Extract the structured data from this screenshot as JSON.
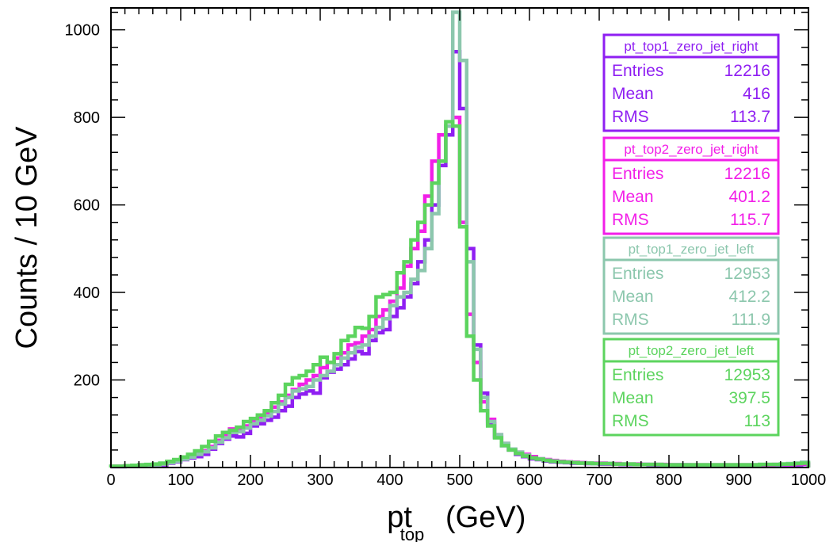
{
  "chart_data": {
    "type": "histogram",
    "xlabel": "pt",
    "xlabel_sub": "top",
    "xlabel_unit": "(GeV)",
    "ylabel": "Counts / 10 GeV",
    "xlim": [
      0,
      1000
    ],
    "ylim": [
      0,
      1050
    ],
    "bin_width": 10,
    "x_ticks": [
      "0",
      "100",
      "200",
      "300",
      "400",
      "500",
      "600",
      "700",
      "800",
      "900",
      "1000"
    ],
    "y_ticks": [
      "200",
      "400",
      "600",
      "800",
      "1000"
    ],
    "grid": false,
    "legend_position": "right",
    "series": [
      {
        "name": "pt_top1_zero_jet_right",
        "color": "#8f1ff2",
        "stats": [
          {
            "label": "Entries",
            "value": "12216"
          },
          {
            "label": "Mean",
            "value": "416"
          },
          {
            "label": "RMS",
            "value": "113.7"
          }
        ],
        "values": [
          2,
          2,
          3,
          4,
          3,
          5,
          5,
          6,
          10,
          13,
          18,
          22,
          25,
          30,
          42,
          55,
          65,
          72,
          70,
          78,
          95,
          100,
          108,
          115,
          130,
          140,
          160,
          168,
          175,
          170,
          205,
          218,
          225,
          235,
          248,
          265,
          260,
          290,
          308,
          315,
          345,
          365,
          390,
          420,
          470,
          520,
          600,
          690,
          760,
          950,
          820,
          500,
          280,
          170,
          100,
          70,
          50,
          40,
          30,
          25,
          20,
          18,
          15,
          13,
          12,
          11,
          10,
          10,
          9,
          9,
          8,
          8,
          8,
          7,
          7,
          7,
          7,
          6,
          6,
          6,
          6,
          6,
          6,
          5,
          5,
          5,
          5,
          5,
          5,
          5,
          5,
          5,
          5,
          5,
          5,
          6,
          6,
          6,
          6,
          7
        ]
      },
      {
        "name": "pt_top2_zero_jet_right",
        "color": "#f21fe8",
        "stats": [
          {
            "label": "Entries",
            "value": "12216"
          },
          {
            "label": "Mean",
            "value": "401.2"
          },
          {
            "label": "RMS",
            "value": "115.7"
          }
        ],
        "values": [
          3,
          3,
          4,
          5,
          6,
          6,
          7,
          8,
          12,
          15,
          20,
          26,
          32,
          38,
          48,
          62,
          75,
          88,
          85,
          95,
          105,
          115,
          125,
          138,
          150,
          165,
          178,
          190,
          200,
          210,
          228,
          240,
          250,
          262,
          280,
          285,
          300,
          315,
          345,
          360,
          380,
          410,
          460,
          500,
          540,
          620,
          700,
          760,
          780,
          800,
          560,
          350,
          240,
          150,
          110,
          75,
          55,
          42,
          35,
          30,
          25,
          20,
          18,
          16,
          14,
          13,
          12,
          11,
          10,
          10,
          10,
          9,
          9,
          8,
          8,
          8,
          7,
          7,
          7,
          7,
          6,
          6,
          6,
          6,
          6,
          6,
          6,
          6,
          6,
          6,
          6,
          6,
          6,
          6,
          6,
          7,
          7,
          7,
          8,
          8
        ]
      },
      {
        "name": "pt_top1_zero_jet_left",
        "color": "#8cc7ad",
        "stats": [
          {
            "label": "Entries",
            "value": "12953"
          },
          {
            "label": "Mean",
            "value": "412.2"
          },
          {
            "label": "RMS",
            "value": "111.9"
          }
        ],
        "values": [
          2,
          2,
          3,
          4,
          5,
          5,
          6,
          8,
          11,
          14,
          19,
          24,
          30,
          36,
          45,
          58,
          68,
          80,
          82,
          90,
          100,
          108,
          118,
          128,
          145,
          160,
          175,
          180,
          185,
          200,
          210,
          220,
          235,
          250,
          262,
          275,
          280,
          300,
          320,
          340,
          370,
          390,
          400,
          430,
          450,
          500,
          580,
          700,
          780,
          1040,
          930,
          470,
          270,
          160,
          105,
          75,
          55,
          42,
          35,
          28,
          22,
          20,
          17,
          15,
          13,
          12,
          11,
          10,
          10,
          9,
          9,
          9,
          8,
          8,
          8,
          7,
          7,
          7,
          7,
          6,
          6,
          6,
          6,
          6,
          6,
          6,
          6,
          6,
          6,
          6,
          6,
          6,
          6,
          7,
          7,
          7,
          8,
          9,
          10,
          12
        ]
      },
      {
        "name": "pt_top2_zero_jet_left",
        "color": "#5cd45e",
        "stats": [
          {
            "label": "Entries",
            "value": "12953"
          },
          {
            "label": "Mean",
            "value": "397.5"
          },
          {
            "label": "RMS",
            "value": "113"
          }
        ],
        "values": [
          3,
          3,
          4,
          5,
          6,
          7,
          8,
          10,
          14,
          18,
          24,
          30,
          38,
          48,
          60,
          72,
          80,
          85,
          92,
          105,
          112,
          120,
          130,
          148,
          165,
          190,
          205,
          210,
          220,
          235,
          252,
          240,
          260,
          290,
          300,
          320,
          318,
          345,
          390,
          395,
          400,
          445,
          470,
          520,
          560,
          600,
          650,
          700,
          790,
          780,
          550,
          300,
          200,
          130,
          95,
          68,
          50,
          40,
          32,
          26,
          22,
          19,
          16,
          14,
          13,
          12,
          11,
          10,
          10,
          9,
          9,
          9,
          8,
          8,
          8,
          7,
          7,
          7,
          7,
          6,
          6,
          6,
          6,
          6,
          6,
          6,
          6,
          6,
          6,
          6,
          6,
          6,
          6,
          7,
          7,
          7,
          8,
          8,
          9,
          10
        ]
      }
    ]
  }
}
